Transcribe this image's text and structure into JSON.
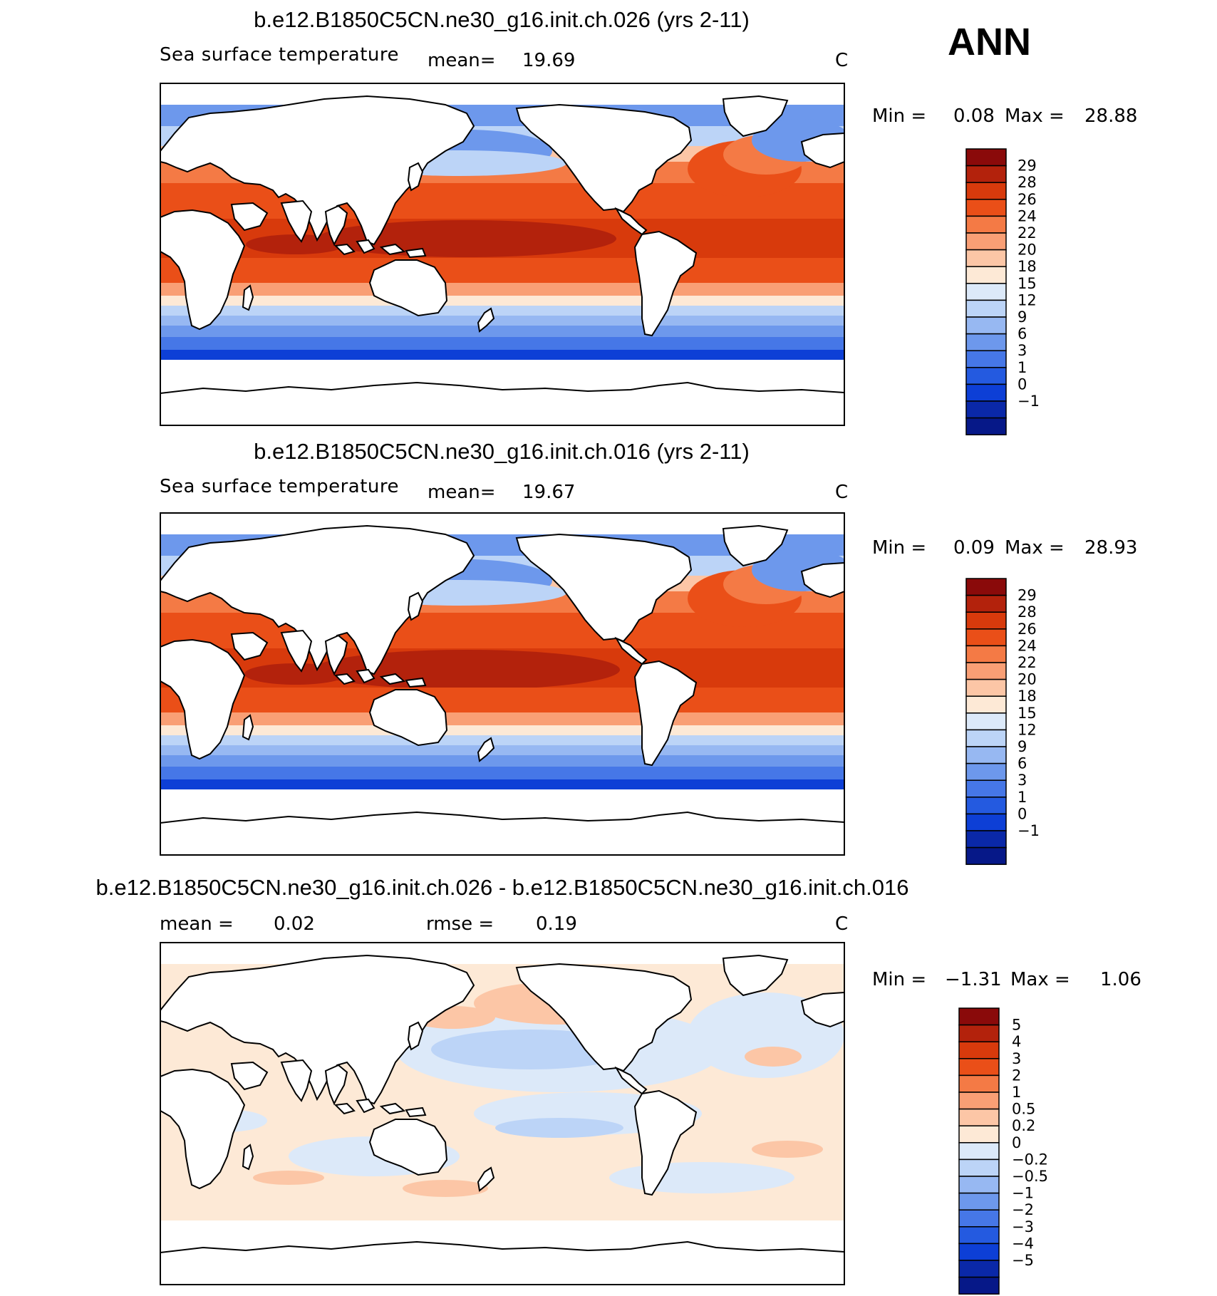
{
  "season": "ANN",
  "panels": [
    {
      "title": "b.e12.B1850C5CN.ne30_g16.init.ch.026 (yrs 2-11)",
      "variable": "Sea surface temperature",
      "stat1_label": "mean=",
      "stat1_value": "19.69",
      "stat2_label": "",
      "stat2_value": "",
      "units": "C",
      "min_label": "Min =",
      "min_value": "0.08",
      "max_label": "Max =",
      "max_value": "28.88"
    },
    {
      "title": "b.e12.B1850C5CN.ne30_g16.init.ch.016 (yrs 2-11)",
      "variable": "Sea surface temperature",
      "stat1_label": "mean=",
      "stat1_value": "19.67",
      "stat2_label": "",
      "stat2_value": "",
      "units": "C",
      "min_label": "Min =",
      "min_value": "0.09",
      "max_label": "Max =",
      "max_value": "28.93"
    },
    {
      "title": "b.e12.B1850C5CN.ne30_g16.init.ch.026 - b.e12.B1850C5CN.ne30_g16.init.ch.016",
      "variable": "",
      "stat1_label": "mean =",
      "stat1_value": "0.02",
      "stat2_label": "rmse =",
      "stat2_value": "0.19",
      "units": "C",
      "min_label": "Min =",
      "min_value": "−1.31",
      "max_label": "Max =",
      "max_value": "1.06"
    }
  ],
  "chart_data": [
    {
      "type": "heatmap",
      "title": "b.e12.B1850C5CN.ne30_g16.init.ch.026 (yrs 2-11)",
      "field": "Sea surface temperature",
      "mean": 19.69,
      "min": 0.08,
      "max": 28.88,
      "units": "C",
      "colorbar_levels": [
        "29",
        "28",
        "26",
        "24",
        "22",
        "20",
        "18",
        "15",
        "12",
        "9",
        "6",
        "3",
        "1",
        "0",
        "−1"
      ],
      "colorbar_colors": [
        "#8a0a0a",
        "#b3220c",
        "#d83a0c",
        "#ea4f18",
        "#f47a45",
        "#f99f75",
        "#fcc6a6",
        "#fde9d6",
        "#dce9f9",
        "#bcd4f7",
        "#97b8f2",
        "#6d98ec",
        "#4677e7",
        "#245ae0",
        "#0d3fd6",
        "#0a28a8",
        "#061888"
      ]
    },
    {
      "type": "heatmap",
      "title": "b.e12.B1850C5CN.ne30_g16.init.ch.016 (yrs 2-11)",
      "field": "Sea surface temperature",
      "mean": 19.67,
      "min": 0.09,
      "max": 28.93,
      "units": "C",
      "colorbar_levels": [
        "29",
        "28",
        "26",
        "24",
        "22",
        "20",
        "18",
        "15",
        "12",
        "9",
        "6",
        "3",
        "1",
        "0",
        "−1"
      ],
      "colorbar_colors": [
        "#8a0a0a",
        "#b3220c",
        "#d83a0c",
        "#ea4f18",
        "#f47a45",
        "#f99f75",
        "#fcc6a6",
        "#fde9d6",
        "#dce9f9",
        "#bcd4f7",
        "#97b8f2",
        "#6d98ec",
        "#4677e7",
        "#245ae0",
        "#0d3fd6",
        "#0a28a8",
        "#061888"
      ]
    },
    {
      "type": "heatmap",
      "title": "b.e12.B1850C5CN.ne30_g16.init.ch.026 - b.e12.B1850C5CN.ne30_g16.init.ch.016",
      "mean": 0.02,
      "rmse": 0.19,
      "min": -1.31,
      "max": 1.06,
      "units": "C",
      "colorbar_levels": [
        "5",
        "4",
        "3",
        "2",
        "1",
        "0.5",
        "0.2",
        "0",
        "−0.2",
        "−0.5",
        "−1",
        "−2",
        "−3",
        "−4",
        "−5"
      ],
      "colorbar_colors": [
        "#8a0a0a",
        "#b3220c",
        "#d83a0c",
        "#ea4f18",
        "#f47a45",
        "#f99f75",
        "#fcc6a6",
        "#fde9d6",
        "#dce9f9",
        "#bcd4f7",
        "#97b8f2",
        "#6d98ec",
        "#4677e7",
        "#245ae0",
        "#0d3fd6",
        "#0a28a8",
        "#061888"
      ]
    }
  ]
}
